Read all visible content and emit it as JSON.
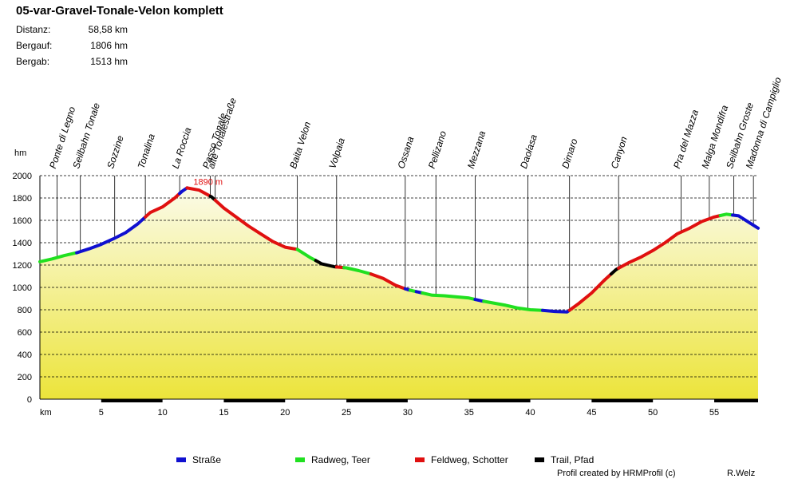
{
  "title": "05-var-Gravel-Tonale-Velon komplett",
  "stats": [
    {
      "label": "Distanz:",
      "value": "58,58 km"
    },
    {
      "label": "Bergauf:",
      "value": "1806 hm"
    },
    {
      "label": "Bergab:",
      "value": "1513 hm"
    }
  ],
  "legend": [
    {
      "label": "Straße",
      "color": "#1010d0"
    },
    {
      "label": "Radweg, Teer",
      "color": "#20e020"
    },
    {
      "label": "Feldweg, Schotter",
      "color": "#e01010"
    },
    {
      "label": "Trail, Pfad",
      "color": "#000000"
    }
  ],
  "credit": "Profil created by HRMProfil (c)",
  "author": "R.Welz",
  "chart_data": {
    "type": "area",
    "ylabel": "hm",
    "xlabel": "km",
    "xlim": [
      0,
      58.58
    ],
    "ylim": [
      0,
      2000
    ],
    "yticks": [
      0,
      200,
      400,
      600,
      800,
      1000,
      1200,
      1400,
      1600,
      1800,
      2000
    ],
    "xticks": [
      5,
      10,
      15,
      20,
      25,
      30,
      35,
      40,
      45,
      50,
      55
    ],
    "grid": true,
    "max_label": "1890 m",
    "max_point": [
      12,
      1890
    ],
    "profile": [
      [
        0,
        1230
      ],
      [
        1,
        1255
      ],
      [
        2,
        1285
      ],
      [
        3,
        1310
      ],
      [
        4,
        1345
      ],
      [
        5,
        1385
      ],
      [
        6,
        1435
      ],
      [
        7,
        1490
      ],
      [
        8,
        1570
      ],
      [
        8.6,
        1630
      ],
      [
        9,
        1670
      ],
      [
        10,
        1720
      ],
      [
        11,
        1800
      ],
      [
        11.6,
        1860
      ],
      [
        12,
        1890
      ],
      [
        13,
        1870
      ],
      [
        14,
        1810
      ],
      [
        15,
        1710
      ],
      [
        16,
        1630
      ],
      [
        17,
        1550
      ],
      [
        18,
        1480
      ],
      [
        19,
        1410
      ],
      [
        20,
        1360
      ],
      [
        21,
        1340
      ],
      [
        22,
        1270
      ],
      [
        23,
        1210
      ],
      [
        24,
        1185
      ],
      [
        25,
        1175
      ],
      [
        26,
        1150
      ],
      [
        27,
        1120
      ],
      [
        28,
        1080
      ],
      [
        29,
        1020
      ],
      [
        30,
        980
      ],
      [
        31,
        955
      ],
      [
        32,
        930
      ],
      [
        33,
        925
      ],
      [
        34,
        915
      ],
      [
        35,
        905
      ],
      [
        36,
        880
      ],
      [
        37,
        860
      ],
      [
        38,
        840
      ],
      [
        39,
        815
      ],
      [
        40,
        800
      ],
      [
        41,
        795
      ],
      [
        42,
        785
      ],
      [
        43,
        780
      ],
      [
        44,
        860
      ],
      [
        45,
        950
      ],
      [
        46,
        1060
      ],
      [
        47,
        1160
      ],
      [
        48,
        1220
      ],
      [
        49,
        1270
      ],
      [
        50,
        1330
      ],
      [
        51,
        1400
      ],
      [
        52,
        1480
      ],
      [
        53,
        1530
      ],
      [
        54,
        1590
      ],
      [
        55,
        1630
      ],
      [
        56,
        1655
      ],
      [
        57,
        1640
      ],
      [
        58,
        1570
      ],
      [
        58.58,
        1530
      ]
    ],
    "segments": [
      {
        "type": "Radweg, Teer",
        "from": 0,
        "to": 3
      },
      {
        "type": "Straße",
        "from": 3,
        "to": 8.6
      },
      {
        "type": "Feldweg, Schotter",
        "from": 8.6,
        "to": 11.4
      },
      {
        "type": "Straße",
        "from": 11.4,
        "to": 12
      },
      {
        "type": "Feldweg, Schotter",
        "from": 12,
        "to": 13.9
      },
      {
        "type": "Trail, Pfad",
        "from": 13.9,
        "to": 14.3
      },
      {
        "type": "Feldweg, Schotter",
        "from": 14.3,
        "to": 21
      },
      {
        "type": "Radweg, Teer",
        "from": 21,
        "to": 22.5
      },
      {
        "type": "Trail, Pfad",
        "from": 22.5,
        "to": 24.2
      },
      {
        "type": "Feldweg, Schotter",
        "from": 24.2,
        "to": 24.8
      },
      {
        "type": "Radweg, Teer",
        "from": 24.8,
        "to": 27
      },
      {
        "type": "Feldweg, Schotter",
        "from": 27,
        "to": 29.8
      },
      {
        "type": "Straße",
        "from": 29.8,
        "to": 30.2
      },
      {
        "type": "Radweg, Teer",
        "from": 30.2,
        "to": 30.7
      },
      {
        "type": "Straße",
        "from": 30.7,
        "to": 31.2
      },
      {
        "type": "Radweg, Teer",
        "from": 31.2,
        "to": 35.5
      },
      {
        "type": "Straße",
        "from": 35.5,
        "to": 36.2
      },
      {
        "type": "Radweg, Teer",
        "from": 36.2,
        "to": 41
      },
      {
        "type": "Straße",
        "from": 41,
        "to": 43.2
      },
      {
        "type": "Feldweg, Schotter",
        "from": 43.2,
        "to": 46.6
      },
      {
        "type": "Trail, Pfad",
        "from": 46.6,
        "to": 47.2
      },
      {
        "type": "Feldweg, Schotter",
        "from": 47.2,
        "to": 55.5
      },
      {
        "type": "Radweg, Teer",
        "from": 55.5,
        "to": 56.5
      },
      {
        "type": "Straße",
        "from": 56.5,
        "to": 58.58
      }
    ],
    "bottom_bar": [
      {
        "from": 5,
        "to": 10
      },
      {
        "from": 15,
        "to": 20
      },
      {
        "from": 25,
        "to": 30
      },
      {
        "from": 35,
        "to": 40
      },
      {
        "from": 45,
        "to": 50
      },
      {
        "from": 55,
        "to": 58.58
      }
    ],
    "places": [
      {
        "name": "Ponte di Legno",
        "km": 1.4
      },
      {
        "name": "Seilbahn Tonale",
        "km": 3.3
      },
      {
        "name": "Sozzine",
        "km": 6.1
      },
      {
        "name": "Tonalina",
        "km": 8.6
      },
      {
        "name": "La Roccia",
        "km": 11.4
      },
      {
        "name": "Passo Tonale",
        "km": 13.9
      },
      {
        "name": "alte Tonalestraße",
        "km": 14.3
      },
      {
        "name": "Baita Velon",
        "km": 21
      },
      {
        "name": "Volpaia",
        "km": 24.2
      },
      {
        "name": "Ossana",
        "km": 29.8
      },
      {
        "name": "Pellizano",
        "km": 32.3
      },
      {
        "name": "Mezzana",
        "km": 35.5
      },
      {
        "name": "Daolasa",
        "km": 39.8
      },
      {
        "name": "Dimaro",
        "km": 43.2
      },
      {
        "name": "Canyon",
        "km": 47.2
      },
      {
        "name": "Pra del Mazza",
        "km": 52.3
      },
      {
        "name": "Malga Mondifra",
        "km": 54.6
      },
      {
        "name": "Seilbahn Groste",
        "km": 56.6
      },
      {
        "name": "Madonna di Campiglio",
        "km": 58.2
      }
    ]
  }
}
